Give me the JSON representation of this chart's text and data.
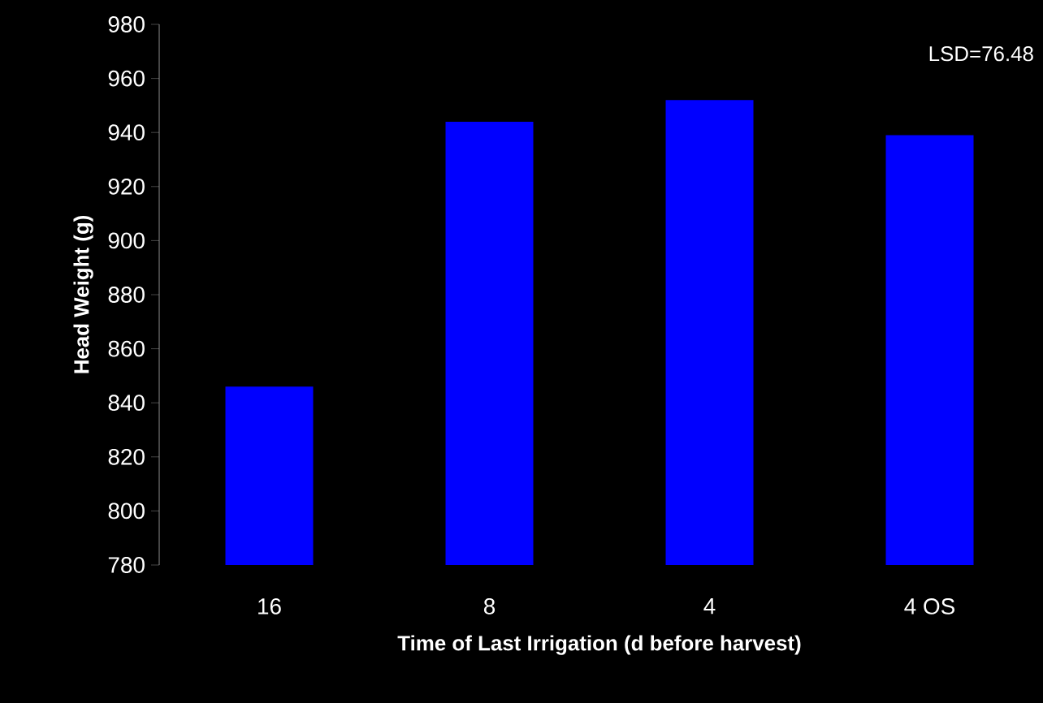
{
  "chart_data": {
    "type": "bar",
    "xlabel": "Time of Last Irrigation (d before harvest)",
    "ylabel": "Head Weight (g)",
    "categories": [
      "16",
      "8",
      "4",
      "4 OS"
    ],
    "values": [
      846,
      944,
      952,
      939
    ],
    "color": "#0000ff",
    "ylim": [
      780,
      980
    ],
    "yticks": [
      780,
      800,
      820,
      840,
      860,
      880,
      900,
      920,
      940,
      960,
      980
    ],
    "grid": false,
    "annotations": [
      "LSD=76.48"
    ]
  }
}
